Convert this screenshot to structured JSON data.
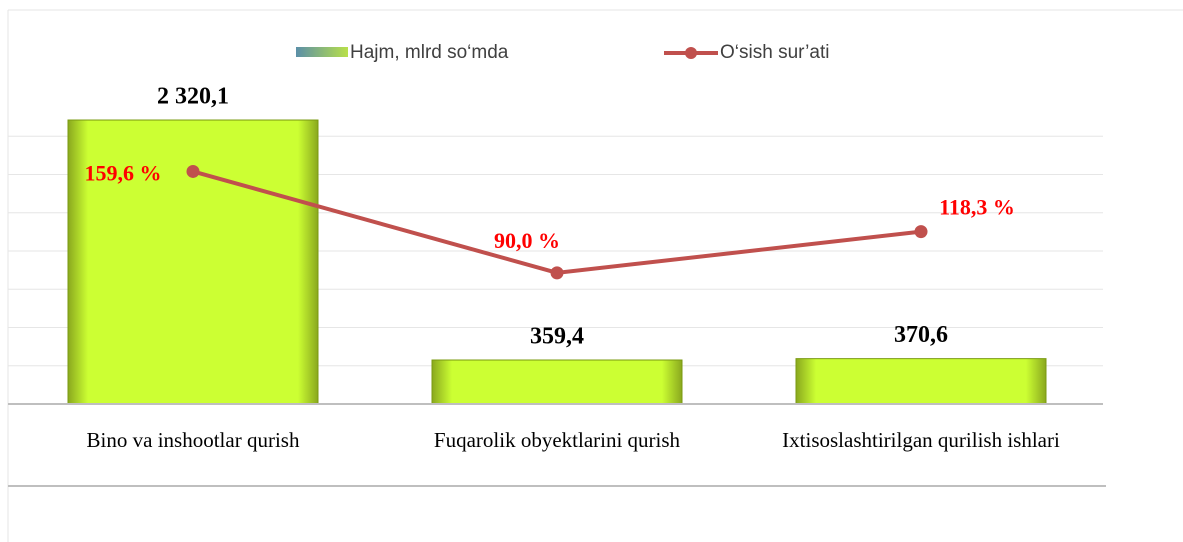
{
  "chart_data": {
    "type": "bar_line",
    "categories": [
      "Bino va inshootlar qurish",
      "Fuqarolik  obyektlarini qurish",
      "Ixtisoslashtirilgan qurilish ishlari"
    ],
    "series": [
      {
        "name": "Hajm, mlrd so‘mda",
        "color": "#ccff33",
        "type": "bar",
        "values": [
          2320.1,
          359.4,
          370.6
        ],
        "value_labels": [
          "2 320,1",
          "359,4",
          "370,6"
        ]
      },
      {
        "name": "O‘sish sur’ati",
        "color": "#c0504d",
        "type": "line",
        "axis": "y2",
        "values": [
          159.6,
          90.0,
          118.3
        ],
        "value_labels": [
          "159,6 %",
          "90,0 %",
          "118,3 %"
        ]
      }
    ],
    "ylim": [
      0,
      2500
    ],
    "y2lim": [
      0,
      210
    ],
    "yticks": [
      0,
      312.5,
      625,
      937.5,
      1250,
      1562.5,
      1875,
      2187.5,
      2500
    ],
    "grid": true,
    "legend": "top"
  }
}
